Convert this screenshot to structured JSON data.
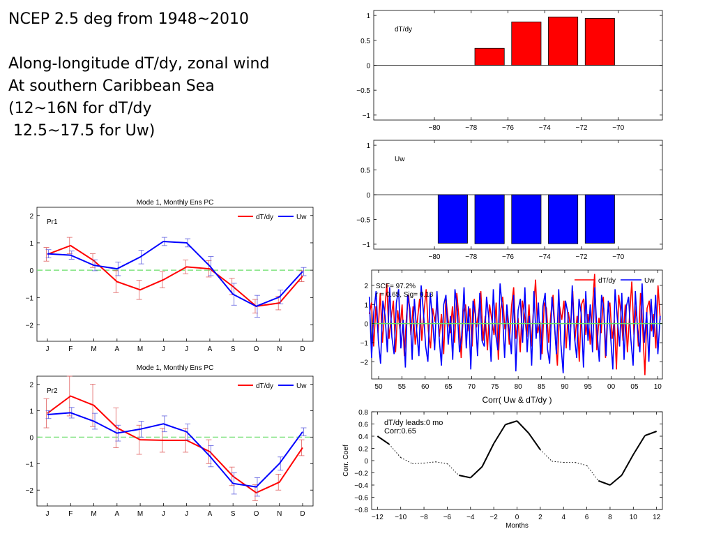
{
  "heading": {
    "line1": "NCEP 2.5 deg from 1948~2010",
    "line2": "",
    "line3": "Along-longitude dT/dy, zonal wind",
    "line4": "At southern Caribbean Sea",
    "line5": "(12~16N for dT/dy",
    "line6": " 12.5~17.5 for Uw)"
  },
  "colors": {
    "dTdy": "#ff0000",
    "Uw": "#0000ff",
    "zero": "#66dd66",
    "bar_edge": "#000000"
  },
  "chart_data": [
    {
      "id": "pc-pr1",
      "type": "line",
      "title": "Mode 1, Monthly Ens PC",
      "label": "Pr1",
      "categories": [
        "J",
        "F",
        "M",
        "A",
        "M",
        "J",
        "J",
        "A",
        "S",
        "O",
        "N",
        "D"
      ],
      "ylim": [
        -2.6,
        2.3
      ],
      "yticks": [
        -2,
        -1,
        0,
        1,
        2
      ],
      "legend": "top-right",
      "reference_line": 0,
      "series": [
        {
          "name": "dT/dy",
          "color": "#ff0000",
          "values": [
            0.58,
            0.9,
            0.35,
            -0.42,
            -0.72,
            -0.35,
            0.12,
            0.05,
            -0.6,
            -1.32,
            -1.2,
            -0.22
          ],
          "errors": [
            0.25,
            0.3,
            0.25,
            0.4,
            0.35,
            0.3,
            0.25,
            0.3,
            0.3,
            0.25,
            0.25,
            0.2
          ]
        },
        {
          "name": "Uw",
          "color": "#0000ff",
          "values": [
            0.6,
            0.55,
            0.18,
            0.05,
            0.48,
            1.05,
            1.0,
            0.15,
            -0.88,
            -1.32,
            -0.98,
            -0.05
          ],
          "errors": [
            0.15,
            0.15,
            0.2,
            0.25,
            0.25,
            0.15,
            0.15,
            0.35,
            0.4,
            0.4,
            0.25,
            0.15
          ]
        }
      ]
    },
    {
      "id": "pc-pr2",
      "type": "line",
      "title": "Mode 1, Monthly Ens PC",
      "label": "Pr2",
      "categories": [
        "J",
        "F",
        "M",
        "A",
        "M",
        "J",
        "J",
        "A",
        "S",
        "O",
        "N",
        "D"
      ],
      "ylim": [
        -2.6,
        2.3
      ],
      "yticks": [
        -2,
        -1,
        0,
        1,
        2
      ],
      "legend": "top-right",
      "reference_line": 0,
      "series": [
        {
          "name": "dT/dy",
          "color": "#ff0000",
          "values": [
            0.9,
            1.55,
            1.2,
            0.35,
            -0.1,
            -0.12,
            -0.12,
            -0.55,
            -1.48,
            -2.1,
            -1.7,
            -0.4
          ],
          "errors": [
            0.55,
            0.75,
            0.8,
            0.75,
            0.55,
            0.45,
            0.45,
            0.45,
            0.35,
            0.3,
            0.3,
            0.3
          ]
        },
        {
          "name": "Uw",
          "color": "#0000ff",
          "values": [
            0.85,
            0.92,
            0.6,
            0.15,
            0.3,
            0.5,
            0.2,
            -0.72,
            -1.75,
            -1.88,
            -1.0,
            0.2
          ],
          "errors": [
            0.15,
            0.2,
            0.3,
            0.3,
            0.3,
            0.3,
            0.3,
            0.4,
            0.4,
            0.35,
            0.25,
            0.15
          ]
        }
      ]
    },
    {
      "id": "bar-dtdy",
      "type": "bar",
      "label": "dT/dy",
      "color": "#ff0000",
      "x": [
        -77,
        -75,
        -73,
        -71
      ],
      "values": [
        0.34,
        0.87,
        0.97,
        0.94
      ],
      "bar_width": 1.6,
      "xlim": [
        -83.3,
        -67.6
      ],
      "ylim": [
        -1.1,
        1.1
      ],
      "xticks": [
        -80,
        -78,
        -76,
        -74,
        -72,
        -70
      ],
      "yticks": [
        -1,
        -0.5,
        0,
        0.5,
        1
      ]
    },
    {
      "id": "bar-uw",
      "type": "bar",
      "label": "Uw",
      "color": "#0000ff",
      "x": [
        -79,
        -77,
        -75,
        -73,
        -71
      ],
      "values": [
        -0.98,
        -0.99,
        -0.99,
        -0.99,
        -0.98
      ],
      "bar_width": 1.6,
      "xlim": [
        -83.3,
        -67.6
      ],
      "ylim": [
        -1.1,
        1.1
      ],
      "xticks": [
        -80,
        -78,
        -76,
        -74,
        -72,
        -70
      ],
      "yticks": [
        -1,
        -0.5,
        0,
        0.5,
        1
      ]
    },
    {
      "id": "ts",
      "type": "line",
      "xlim": [
        1948.5,
        2011
      ],
      "ylim": [
        -2.9,
        2.8
      ],
      "xticks": [
        1950,
        1955,
        1960,
        1965,
        1970,
        1975,
        1980,
        1985,
        1990,
        1995,
        2000,
        2005,
        2010
      ],
      "xtick_labels": [
        "50",
        "55",
        "60",
        "65",
        "70",
        "75",
        "80",
        "85",
        "90",
        "95",
        "00",
        "05",
        "10"
      ],
      "yticks": [
        -2,
        -1,
        0,
        1,
        2
      ],
      "xlabel": "Corr( Uw & dT/dy )",
      "legend": "top-right",
      "reference_line": 0,
      "annotations": [
        "SCF= 97.2%",
        "r = 0.65, Sig= 0.13"
      ],
      "series": [
        {
          "name": "dT/dy",
          "color": "#ff0000",
          "x_start": 1948,
          "values": [
            0.5,
            1.1,
            -1.2,
            0.9,
            -0.5,
            1.6,
            -1.0,
            0.6,
            2.1,
            -0.8,
            0.3,
            1.2,
            -1.5,
            0.7,
            -0.3,
            1.0,
            -1.7,
            0.4,
            1.5,
            -0.6,
            0.9,
            -1.1,
            0.2,
            1.3,
            -0.9,
            0.6,
            1.8,
            -0.4,
            -1.3,
            0.8,
            0.1,
            1.1,
            -0.7,
            0.5,
            -1.6,
            1.4,
            0.2,
            -0.5,
            0.9,
            -1.0,
            1.6,
            0.3,
            -1.8,
            0.6,
            1.0,
            -0.4,
            0.8,
            -1.2,
            1.3,
            -0.2,
            0.6,
            1.7,
            -0.9,
            0.4,
            -1.4,
            1.0,
            0.2,
            -0.6,
            1.1,
            -1.9,
            0.7,
            1.4,
            -0.3,
            0.5,
            -1.1,
            0.9,
            1.9,
            -0.8,
            0.3,
            -1.5,
            1.2,
            0.4,
            -0.7,
            1.0,
            -1.2,
            0.6,
            2.3,
            -0.5,
            0.1,
            -1.6,
            1.1,
            0.8,
            -1.0,
            0.5,
            1.5,
            -0.7,
            -2.2,
            0.9,
            0.2,
            1.2,
            -1.3,
            0.6,
            -0.2,
            1.7,
            -0.9,
            0.4,
            -2.0,
            1.0,
            1.3,
            -0.6,
            0.5,
            -1.1,
            0.8,
            2.6,
            -1.4,
            0.3,
            -0.5,
            1.4,
            -1.8,
            0.7,
            1.1,
            -0.8,
            0.2,
            -2.4,
            1.5,
            0.6,
            -0.9,
            1.0,
            -1.5,
            0.4,
            2.2,
            -0.6,
            0.9,
            -1.2,
            1.6,
            -0.3,
            -2.7,
            0.8,
            1.2,
            -0.4,
            0.5,
            -1.3,
            2.0,
            0.2
          ]
        },
        {
          "name": "Uw",
          "color": "#0000ff",
          "x_start": 1948,
          "values": [
            1.4,
            -1.8,
            0.6,
            1.7,
            -0.9,
            -2.1,
            1.2,
            0.4,
            -1.5,
            1.9,
            -0.7,
            -1.6,
            1.1,
            1.8,
            -1.3,
            0.2,
            -2.3,
            1.5,
            0.8,
            -1.9,
            1.3,
            -0.4,
            -1.7,
            2.0,
            0.6,
            -1.2,
            -2.0,
            1.6,
            0.3,
            -1.4,
            1.7,
            -0.8,
            -2.2,
            1.0,
            1.5,
            -1.1,
            0.4,
            -1.9,
            1.8,
            0.7,
            -1.5,
            -0.6,
            1.9,
            -1.3,
            0.9,
            -2.4,
            1.2,
            0.5,
            -1.7,
            1.6,
            -0.9,
            -1.2,
            1.4,
            0.3,
            -2.0,
            1.8,
            -0.5,
            -1.4,
            2.1,
            0.8,
            -1.8,
            1.0,
            -0.3,
            -1.6,
            1.5,
            -2.5,
            0.7,
            1.3,
            -1.0,
            1.9,
            -1.5,
            0.4,
            -2.2,
            1.7,
            -0.8,
            1.1,
            -1.9,
            0.9,
            1.6,
            -1.3,
            -2.1,
            1.4,
            0.2,
            -1.6,
            1.8,
            -1.1,
            -2.6,
            1.2,
            0.6,
            -1.4,
            2.0,
            -0.7,
            -1.8,
            1.3,
            0.5,
            -2.3,
            1.7,
            -0.9,
            1.0,
            -1.5,
            1.9,
            -0.4,
            -2.0,
            1.5,
            0.8,
            -1.7,
            1.2,
            -0.6,
            -2.4,
            1.8,
            0.3,
            -1.2,
            1.6,
            -1.9,
            0.9,
            1.4,
            -0.8,
            -2.2,
            1.7,
            -0.3,
            -1.5,
            2.1,
            -1.0,
            0.6,
            -2.0,
            1.3,
            -0.7,
            1.5,
            -1.6,
            0.4
          ]
        }
      ]
    },
    {
      "id": "corr",
      "type": "line",
      "xlim": [
        -12.5,
        12.5
      ],
      "ylim": [
        -0.8,
        0.8
      ],
      "xticks": [
        -12,
        -10,
        -8,
        -6,
        -4,
        -2,
        0,
        2,
        4,
        6,
        8,
        10,
        12
      ],
      "yticks": [
        -0.8,
        -0.6,
        -0.4,
        -0.2,
        0,
        0.2,
        0.4,
        0.6,
        0.8
      ],
      "xlabel": "Months",
      "ylabel": "Corr. Coef",
      "annotations": [
        "dT/dy leads:0 mo",
        "Corr:0.65"
      ],
      "series": [
        {
          "name": "",
          "x": [
            -12,
            -11,
            -10,
            -9,
            -8,
            -7,
            -6,
            -5,
            -4,
            -3,
            -2,
            -1,
            0,
            1,
            2,
            3,
            4,
            5,
            6,
            7,
            8,
            9,
            10,
            11,
            12
          ],
          "values": [
            0.4,
            0.27,
            0.05,
            -0.05,
            -0.04,
            -0.02,
            -0.05,
            -0.24,
            -0.28,
            -0.1,
            0.28,
            0.59,
            0.65,
            0.45,
            0.18,
            -0.01,
            -0.03,
            -0.03,
            -0.08,
            -0.33,
            -0.4,
            -0.24,
            0.1,
            0.41,
            0.48
          ],
          "significant": [
            true,
            true,
            false,
            false,
            false,
            false,
            false,
            true,
            true,
            true,
            true,
            true,
            true,
            true,
            true,
            false,
            false,
            false,
            false,
            true,
            true,
            true,
            true,
            true,
            true
          ]
        }
      ]
    }
  ]
}
